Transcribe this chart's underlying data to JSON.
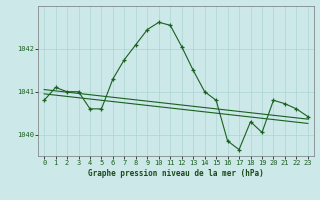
{
  "title": "Graphe pression niveau de la mer (hPa)",
  "background_color": "#cce8e8",
  "grid_color": "#aad4d4",
  "line_color": "#1a6020",
  "ylim": [
    1039.5,
    1043.0
  ],
  "xlim": [
    -0.5,
    23.5
  ],
  "yticks": [
    1040,
    1041,
    1042
  ],
  "xticks": [
    0,
    1,
    2,
    3,
    4,
    5,
    6,
    7,
    8,
    9,
    10,
    11,
    12,
    13,
    14,
    15,
    16,
    17,
    18,
    19,
    20,
    21,
    22,
    23
  ],
  "main_series": [
    1040.8,
    1041.1,
    1041.0,
    1041.0,
    1040.6,
    1040.6,
    1041.3,
    1041.75,
    1042.1,
    1042.45,
    1042.62,
    1042.55,
    1042.05,
    1041.5,
    1041.0,
    1040.8,
    1039.85,
    1039.65,
    1040.3,
    1040.05,
    1040.8,
    1040.72,
    1040.6,
    1040.42
  ],
  "flat_line1": [
    1041.05,
    1041.02,
    1040.99,
    1040.96,
    1040.93,
    1040.9,
    1040.87,
    1040.84,
    1040.81,
    1040.78,
    1040.75,
    1040.72,
    1040.69,
    1040.66,
    1040.63,
    1040.6,
    1040.57,
    1040.54,
    1040.51,
    1040.48,
    1040.45,
    1040.42,
    1040.39,
    1040.36
  ],
  "flat_line2": [
    1040.95,
    1040.92,
    1040.89,
    1040.86,
    1040.83,
    1040.8,
    1040.77,
    1040.74,
    1040.71,
    1040.68,
    1040.65,
    1040.62,
    1040.59,
    1040.56,
    1040.53,
    1040.5,
    1040.47,
    1040.44,
    1040.41,
    1040.38,
    1040.35,
    1040.32,
    1040.29,
    1040.26
  ],
  "title_fontsize": 5.5,
  "tick_fontsize": 5.0
}
